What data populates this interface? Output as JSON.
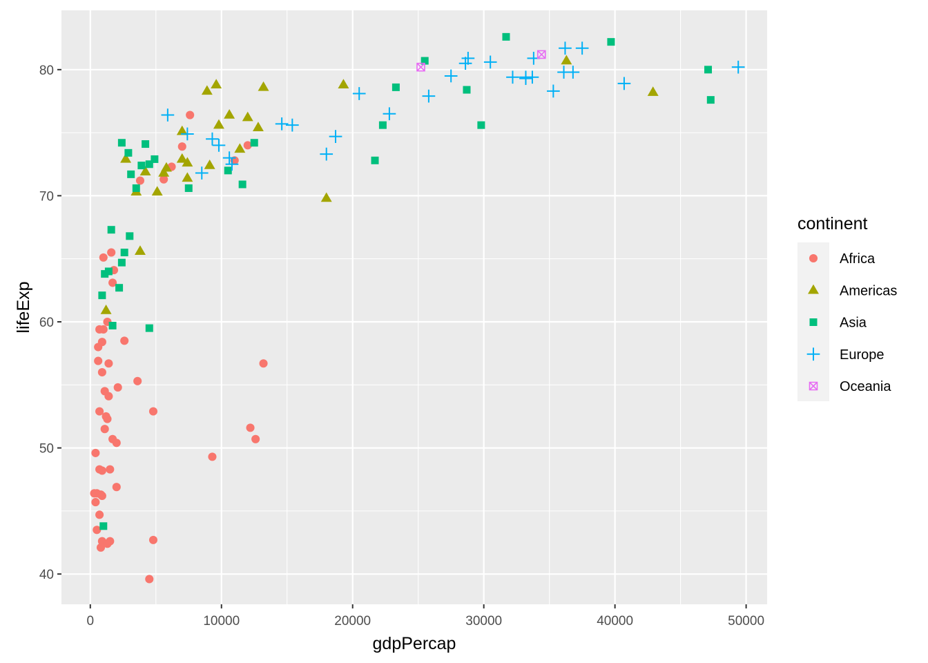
{
  "chart_data": {
    "type": "scatter",
    "title": "",
    "xlabel": "gdpPercap",
    "ylabel": "lifeExp",
    "xlim": [
      -2200,
      51600
    ],
    "ylim": [
      37.6,
      84.7
    ],
    "x_ticks": [
      0,
      10000,
      20000,
      30000,
      40000,
      50000
    ],
    "x_tick_labels": [
      "0",
      "10000",
      "20000",
      "30000",
      "40000",
      "50000"
    ],
    "y_ticks": [
      40,
      50,
      60,
      70,
      80
    ],
    "y_tick_labels": [
      "40",
      "50",
      "60",
      "70",
      "80"
    ],
    "grid": true,
    "legend": {
      "title": "continent",
      "placement": "right"
    },
    "series": [
      {
        "name": "Africa",
        "marker": "circle",
        "color": "#F8766D",
        "points": [
          [
            7600,
            76.4
          ],
          [
            7000,
            73.9
          ],
          [
            12000,
            74.0
          ],
          [
            11000,
            72.8
          ],
          [
            6200,
            72.3
          ],
          [
            3800,
            71.2
          ],
          [
            5600,
            71.3
          ],
          [
            1000,
            65.1
          ],
          [
            1600,
            65.5
          ],
          [
            1800,
            64.1
          ],
          [
            1700,
            63.1
          ],
          [
            1300,
            60.0
          ],
          [
            1000,
            59.4
          ],
          [
            700,
            59.4
          ],
          [
            900,
            58.4
          ],
          [
            600,
            58.0
          ],
          [
            2600,
            58.5
          ],
          [
            600,
            56.9
          ],
          [
            1400,
            56.7
          ],
          [
            900,
            56.0
          ],
          [
            3600,
            55.3
          ],
          [
            1100,
            54.5
          ],
          [
            2100,
            54.8
          ],
          [
            1400,
            54.1
          ],
          [
            700,
            52.9
          ],
          [
            1200,
            52.5
          ],
          [
            1300,
            52.3
          ],
          [
            1100,
            51.5
          ],
          [
            1700,
            50.7
          ],
          [
            2000,
            50.4
          ],
          [
            400,
            49.6
          ],
          [
            700,
            48.3
          ],
          [
            900,
            48.2
          ],
          [
            1500,
            48.3
          ],
          [
            300,
            46.4
          ],
          [
            500,
            46.4
          ],
          [
            800,
            46.3
          ],
          [
            900,
            46.2
          ],
          [
            2000,
            46.9
          ],
          [
            400,
            45.7
          ],
          [
            700,
            44.7
          ],
          [
            500,
            43.5
          ],
          [
            900,
            42.6
          ],
          [
            1500,
            42.6
          ],
          [
            1300,
            42.4
          ],
          [
            800,
            42.1
          ],
          [
            4800,
            42.7
          ],
          [
            4500,
            39.6
          ],
          [
            4800,
            52.9
          ],
          [
            13200,
            56.7
          ],
          [
            12200,
            51.6
          ],
          [
            12600,
            50.7
          ],
          [
            9300,
            49.3
          ]
        ]
      },
      {
        "name": "Americas",
        "marker": "triangle",
        "color": "#A3A500",
        "points": [
          [
            9600,
            78.8
          ],
          [
            8900,
            78.3
          ],
          [
            13200,
            78.6
          ],
          [
            19300,
            78.8
          ],
          [
            36300,
            80.7
          ],
          [
            42900,
            78.2
          ],
          [
            7000,
            75.1
          ],
          [
            9800,
            75.6
          ],
          [
            10600,
            76.4
          ],
          [
            12000,
            76.2
          ],
          [
            12800,
            75.4
          ],
          [
            11400,
            73.7
          ],
          [
            7000,
            72.9
          ],
          [
            7400,
            72.6
          ],
          [
            9100,
            72.4
          ],
          [
            2700,
            72.9
          ],
          [
            4200,
            71.9
          ],
          [
            5800,
            72.2
          ],
          [
            7400,
            71.4
          ],
          [
            5600,
            71.8
          ],
          [
            5100,
            70.3
          ],
          [
            3500,
            70.3
          ],
          [
            18000,
            69.8
          ],
          [
            3800,
            65.6
          ],
          [
            1200,
            60.9
          ]
        ]
      },
      {
        "name": "Asia",
        "marker": "square",
        "color": "#00BF7D",
        "points": [
          [
            31700,
            82.6
          ],
          [
            39700,
            82.2
          ],
          [
            25500,
            80.7
          ],
          [
            47100,
            80.0
          ],
          [
            47300,
            77.6
          ],
          [
            28700,
            78.4
          ],
          [
            23300,
            78.6
          ],
          [
            29800,
            75.6
          ],
          [
            22300,
            75.6
          ],
          [
            21700,
            72.8
          ],
          [
            12500,
            74.2
          ],
          [
            11600,
            70.9
          ],
          [
            10500,
            72.0
          ],
          [
            2400,
            74.2
          ],
          [
            4200,
            74.1
          ],
          [
            2900,
            73.4
          ],
          [
            4500,
            72.5
          ],
          [
            4900,
            72.9
          ],
          [
            3900,
            72.4
          ],
          [
            3100,
            71.7
          ],
          [
            3500,
            70.6
          ],
          [
            7500,
            70.6
          ],
          [
            1600,
            67.3
          ],
          [
            3000,
            66.8
          ],
          [
            2600,
            65.5
          ],
          [
            2400,
            64.7
          ],
          [
            1400,
            64.0
          ],
          [
            1100,
            63.8
          ],
          [
            2200,
            62.7
          ],
          [
            900,
            62.1
          ],
          [
            1700,
            59.7
          ],
          [
            4500,
            59.5
          ],
          [
            1000,
            43.8
          ]
        ]
      },
      {
        "name": "Europe",
        "marker": "cross",
        "color": "#00B0F6",
        "points": [
          [
            49400,
            80.2
          ],
          [
            36200,
            81.7
          ],
          [
            37500,
            81.7
          ],
          [
            33800,
            80.9
          ],
          [
            28800,
            80.9
          ],
          [
            30500,
            80.6
          ],
          [
            28600,
            80.5
          ],
          [
            36100,
            79.8
          ],
          [
            36800,
            79.8
          ],
          [
            27500,
            79.5
          ],
          [
            32200,
            79.4
          ],
          [
            33200,
            79.4
          ],
          [
            33700,
            79.4
          ],
          [
            33200,
            79.3
          ],
          [
            40700,
            78.9
          ],
          [
            35300,
            78.3
          ],
          [
            20500,
            78.1
          ],
          [
            25800,
            77.9
          ],
          [
            22800,
            76.5
          ],
          [
            5900,
            76.4
          ],
          [
            14600,
            75.7
          ],
          [
            15400,
            75.6
          ],
          [
            18700,
            74.7
          ],
          [
            7400,
            74.9
          ],
          [
            9300,
            74.5
          ],
          [
            9800,
            74.0
          ],
          [
            18000,
            73.3
          ],
          [
            10600,
            73.0
          ],
          [
            10800,
            72.5
          ],
          [
            8500,
            71.8
          ]
        ]
      },
      {
        "name": "Oceania",
        "marker": "square-x",
        "color": "#E76BF3",
        "points": [
          [
            34400,
            81.2
          ],
          [
            25200,
            80.2
          ]
        ]
      }
    ]
  }
}
